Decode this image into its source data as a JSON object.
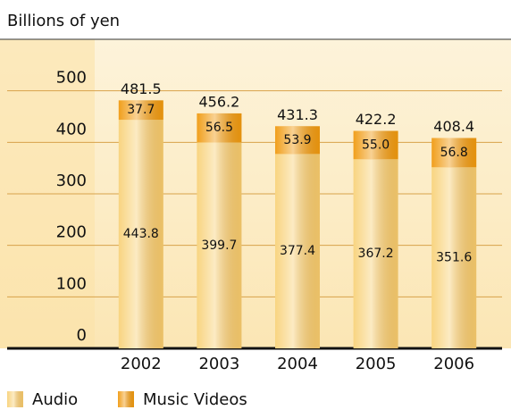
{
  "chart_data": {
    "type": "stacked_bar",
    "title": "Billions of yen",
    "categories": [
      "2002",
      "2003",
      "2004",
      "2005",
      "2006"
    ],
    "series": [
      {
        "name": "Audio",
        "color": "#f8d27a",
        "values": [
          443.8,
          399.7,
          377.4,
          367.2,
          351.6
        ]
      },
      {
        "name": "Music Videos",
        "color": "#f09a10",
        "values": [
          37.7,
          56.5,
          53.9,
          55.0,
          56.8
        ],
        "value_labels": [
          "37.7",
          "56.5",
          "53.9",
          "55.0",
          "56.8"
        ]
      }
    ],
    "totals": [
      481.5,
      456.2,
      431.3,
      422.2,
      408.4
    ],
    "ylim": [
      0,
      600
    ],
    "yticks": [
      0,
      100,
      200,
      300,
      400,
      500
    ],
    "grid": true
  }
}
